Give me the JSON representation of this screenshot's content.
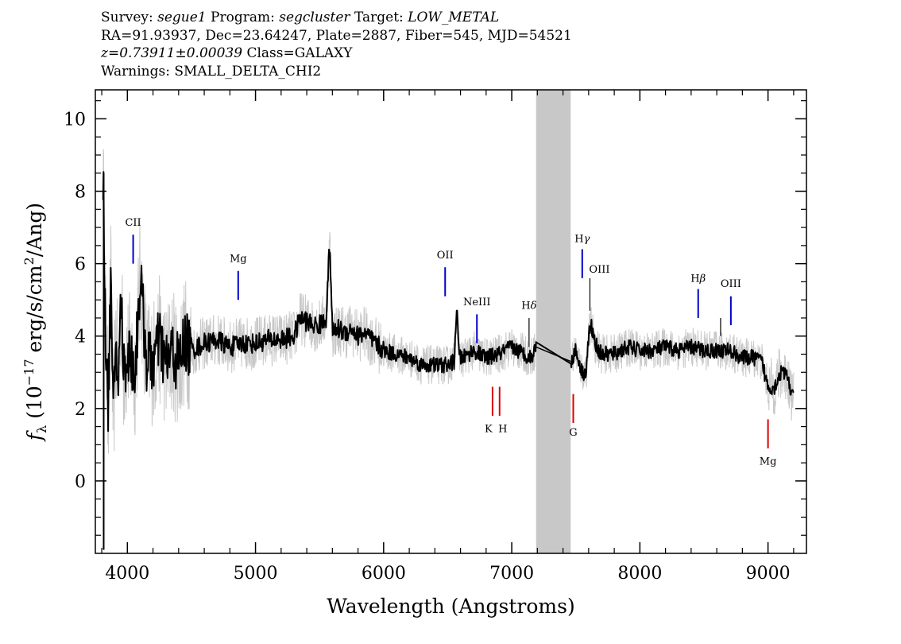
{
  "header": {
    "line1": {
      "survey_label": "Survey:",
      "survey": "segue1",
      "program_label": "Program:",
      "program": "segcluster",
      "target_label": "Target:",
      "target": "LOW_METAL"
    },
    "line2": "RA=91.93937, Dec=23.64247, Plate=2887, Fiber=545, MJD=54521",
    "line3": {
      "redshift": "z=0.73911±0.00039",
      "class": "Class=GALAXY"
    },
    "line4": "Warnings: SMALL_DELTA_CHI2"
  },
  "chart_data": {
    "type": "line",
    "title": "",
    "xlabel": "Wavelength (Angstroms)",
    "ylabel": "f_λ (10^-17 erg/s/cm^2/Ang)",
    "ylabel_parts": {
      "f": "f",
      "lambda": "λ",
      "pre": "(10",
      "exp1": "−17",
      "mid": " erg/s/cm",
      "exp2": "2",
      "post": "/Ang)"
    },
    "xlim": [
      3750,
      9300
    ],
    "ylim": [
      -2.0,
      10.8
    ],
    "xticks": [
      4000,
      5000,
      6000,
      7000,
      8000,
      9000
    ],
    "yticks": [
      0,
      2,
      4,
      6,
      8,
      10
    ],
    "x_minor_step": 200,
    "y_minor_step": 0.5,
    "masked_region": [
      7190,
      7460
    ],
    "colors": {
      "spectrum": "#000000",
      "error": "#c8c8c8",
      "mask": "#c8c8c8",
      "emission": "#0000cc",
      "absorption": "#dd0000",
      "black_line": "#000000"
    },
    "series": [
      {
        "role": "smoothed-spectrum",
        "x": [
          3810,
          3830,
          3850,
          3870,
          3890,
          3910,
          3930,
          3950,
          3970,
          3990,
          4020,
          4060,
          4100,
          4150,
          4200,
          4250,
          4300,
          4350,
          4400,
          4450,
          4500,
          4600,
          4700,
          4800,
          4900,
          5000,
          5100,
          5200,
          5300,
          5350,
          5400,
          5450,
          5500,
          5550,
          5580,
          5600,
          5650,
          5700,
          5750,
          5800,
          5850,
          5900,
          6000,
          6100,
          6200,
          6300,
          6400,
          6500,
          6550,
          6570,
          6590,
          6620,
          6700,
          6800,
          6900,
          7000,
          7100,
          7150,
          7190,
          7460,
          7500,
          7550,
          7580,
          7600,
          7620,
          7650,
          7700,
          7800,
          7900,
          8000,
          8100,
          8200,
          8300,
          8400,
          8500,
          8600,
          8700,
          8800,
          8900,
          8950,
          9000,
          9050,
          9100,
          9150,
          9200
        ],
        "y": [
          8.5,
          4.2,
          2.0,
          5.5,
          1.5,
          4.0,
          2.5,
          5.2,
          3.0,
          3.4,
          3.5,
          3.0,
          5.6,
          3.3,
          3.3,
          3.9,
          3.2,
          3.6,
          3.2,
          3.9,
          3.6,
          3.8,
          3.9,
          3.7,
          3.8,
          3.8,
          3.9,
          3.9,
          4.0,
          4.5,
          4.4,
          4.3,
          4.3,
          4.5,
          6.6,
          4.1,
          4.2,
          4.1,
          4.2,
          4.0,
          4.1,
          3.9,
          3.6,
          3.5,
          3.4,
          3.2,
          3.2,
          3.2,
          3.3,
          4.8,
          3.4,
          3.4,
          3.6,
          3.4,
          3.5,
          3.7,
          3.5,
          3.4,
          3.7,
          3.3,
          3.6,
          3.0,
          3.0,
          4.0,
          4.3,
          3.8,
          3.5,
          3.5,
          3.7,
          3.6,
          3.6,
          3.7,
          3.6,
          3.7,
          3.6,
          3.6,
          3.6,
          3.4,
          3.4,
          3.3,
          2.6,
          2.6,
          3.0,
          2.9,
          2.2
        ]
      }
    ],
    "black_line_x": 3815,
    "black_line_y": [
      -1.9,
      8.5
    ],
    "annotations": {
      "emission": [
        {
          "label": "CII",
          "greek": "",
          "wavelength": 4045,
          "y0": 6.0,
          "y1": 6.8,
          "label_y": 7.05
        },
        {
          "label": "Mg",
          "greek": "",
          "wavelength": 4865,
          "y0": 5.0,
          "y1": 5.8,
          "label_y": 6.05
        },
        {
          "label": "OII",
          "greek": "",
          "wavelength": 6480,
          "y0": 5.1,
          "y1": 5.9,
          "label_y": 6.15
        },
        {
          "label": "NeIII",
          "greek": "",
          "wavelength": 6728,
          "y0": 3.8,
          "y1": 4.6,
          "label_y": 4.85
        },
        {
          "label": "H",
          "greek": "γ",
          "wavelength": 7550,
          "y0": 5.6,
          "y1": 6.4,
          "label_y": 6.6
        },
        {
          "label": "H",
          "greek": "β",
          "wavelength": 8455,
          "y0": 4.5,
          "y1": 5.3,
          "label_y": 5.5
        },
        {
          "label": "OIII",
          "greek": "",
          "wavelength": 8710,
          "y0": 4.3,
          "y1": 5.1,
          "label_y": 5.35
        }
      ],
      "black": [
        {
          "label": "H",
          "greek": "δ",
          "wavelength": 7135,
          "y0": 3.7,
          "y1": 4.5,
          "label_y": 4.75
        },
        {
          "label": "OIII",
          "greek": "",
          "wavelength": 7610,
          "y0": 4.7,
          "y1": 5.6,
          "label_y": 5.75
        },
        {
          "label": "",
          "greek": "",
          "wavelength": 8630,
          "y0": 4.0,
          "y1": 4.5,
          "label_y": 4.5
        }
      ],
      "absorption": [
        {
          "label": "K",
          "wavelength": 6850,
          "y0": 1.8,
          "y1": 2.6,
          "label_y": 1.35
        },
        {
          "label": "H",
          "wavelength": 6905,
          "y0": 1.8,
          "y1": 2.6,
          "label_y": 1.35
        },
        {
          "label": "G",
          "wavelength": 7480,
          "y0": 1.6,
          "y1": 2.4,
          "label_y": 1.25
        },
        {
          "label": "Mg",
          "wavelength": 9000,
          "y0": 0.9,
          "y1": 1.7,
          "label_y": 0.45
        }
      ]
    }
  }
}
